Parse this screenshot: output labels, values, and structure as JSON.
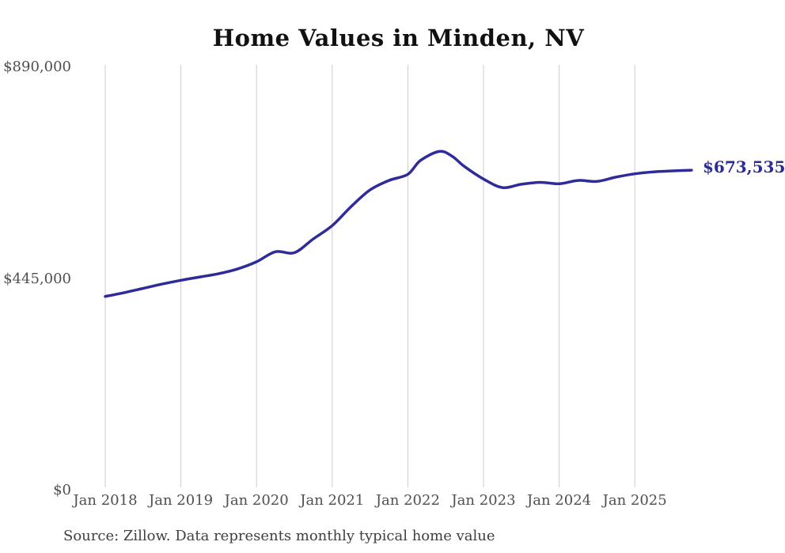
{
  "chart_data": {
    "type": "line",
    "title": "Home Values in Minden, NV",
    "x_axis": {
      "ticks": [
        "Jan 2018",
        "Jan 2019",
        "Jan 2020",
        "Jan 2021",
        "Jan 2022",
        "Jan 2023",
        "Jan 2024",
        "Jan 2025"
      ],
      "gridlines": true,
      "range_note": "monthly data, Jan 2018 through Oct 2025"
    },
    "y_axis": {
      "min": 0,
      "max": 890000,
      "ticks": [
        {
          "label": "$890,000",
          "value": 890000
        },
        {
          "label": "$445,000",
          "value": 445000
        },
        {
          "label": "$0",
          "value": 0
        }
      ]
    },
    "series": [
      {
        "name": "Typical home value",
        "end_label": "$673,535",
        "latest_value": 673535,
        "points": [
          {
            "date": "2018-01",
            "value": 408000
          },
          {
            "date": "2018-04",
            "value": 416000
          },
          {
            "date": "2018-07",
            "value": 425000
          },
          {
            "date": "2018-10",
            "value": 434000
          },
          {
            "date": "2019-01",
            "value": 442000
          },
          {
            "date": "2019-04",
            "value": 449000
          },
          {
            "date": "2019-07",
            "value": 456000
          },
          {
            "date": "2019-10",
            "value": 466000
          },
          {
            "date": "2020-01",
            "value": 481000
          },
          {
            "date": "2020-04",
            "value": 502000
          },
          {
            "date": "2020-07",
            "value": 500000
          },
          {
            "date": "2020-10",
            "value": 529000
          },
          {
            "date": "2021-01",
            "value": 557000
          },
          {
            "date": "2021-04",
            "value": 597000
          },
          {
            "date": "2021-07",
            "value": 632000
          },
          {
            "date": "2021-10",
            "value": 652000
          },
          {
            "date": "2022-01",
            "value": 665000
          },
          {
            "date": "2022-03",
            "value": 694000
          },
          {
            "date": "2022-06",
            "value": 713000
          },
          {
            "date": "2022-08",
            "value": 703000
          },
          {
            "date": "2022-10",
            "value": 681000
          },
          {
            "date": "2023-01",
            "value": 655000
          },
          {
            "date": "2023-04",
            "value": 637000
          },
          {
            "date": "2023-07",
            "value": 644000
          },
          {
            "date": "2023-10",
            "value": 648000
          },
          {
            "date": "2024-01",
            "value": 645000
          },
          {
            "date": "2024-04",
            "value": 652000
          },
          {
            "date": "2024-07",
            "value": 650000
          },
          {
            "date": "2024-10",
            "value": 659000
          },
          {
            "date": "2025-01",
            "value": 666000
          },
          {
            "date": "2025-04",
            "value": 670000
          },
          {
            "date": "2025-07",
            "value": 672000
          },
          {
            "date": "2025-10",
            "value": 673535
          }
        ]
      }
    ],
    "source": "Source: Zillow. Data represents monthly typical home value",
    "colors": {
      "line": "#2f2b9a",
      "end_label": "#2b2b96",
      "grid": "#cccccc",
      "title": "#111111",
      "axis_label": "#4f4f4f",
      "source_text": "#3f3f3f",
      "background": "#ffffff"
    }
  }
}
